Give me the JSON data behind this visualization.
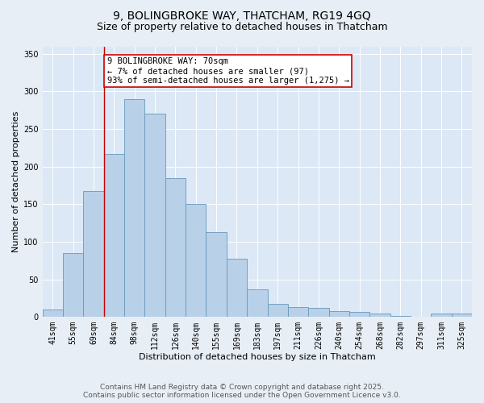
{
  "title_line1": "9, BOLINGBROKE WAY, THATCHAM, RG19 4GQ",
  "title_line2": "Size of property relative to detached houses in Thatcham",
  "xlabel": "Distribution of detached houses by size in Thatcham",
  "ylabel": "Number of detached properties",
  "categories": [
    "41sqm",
    "55sqm",
    "69sqm",
    "84sqm",
    "98sqm",
    "112sqm",
    "126sqm",
    "140sqm",
    "155sqm",
    "169sqm",
    "183sqm",
    "197sqm",
    "211sqm",
    "226sqm",
    "240sqm",
    "254sqm",
    "268sqm",
    "282sqm",
    "297sqm",
    "311sqm",
    "325sqm"
  ],
  "values": [
    10,
    85,
    168,
    217,
    290,
    270,
    185,
    150,
    113,
    77,
    37,
    17,
    13,
    12,
    8,
    7,
    5,
    1,
    0,
    4,
    4
  ],
  "bar_color": "#b8d0e8",
  "bar_edge_color": "#6699bb",
  "bar_width": 1.0,
  "vline_x": 2.5,
  "vline_color": "#cc0000",
  "annotation_text": "9 BOLINGBROKE WAY: 70sqm\n← 7% of detached houses are smaller (97)\n93% of semi-detached houses are larger (1,275) →",
  "annotation_box_color": "#ffffff",
  "annotation_box_edgecolor": "#cc0000",
  "ylim": [
    0,
    360
  ],
  "yticks": [
    0,
    50,
    100,
    150,
    200,
    250,
    300,
    350
  ],
  "bg_color": "#dce8f5",
  "fig_bg_color": "#e8eef5",
  "footer_line1": "Contains HM Land Registry data © Crown copyright and database right 2025.",
  "footer_line2": "Contains public sector information licensed under the Open Government Licence v3.0.",
  "title_fontsize": 10,
  "subtitle_fontsize": 9,
  "axis_label_fontsize": 8,
  "tick_fontsize": 7,
  "annotation_fontsize": 7.5,
  "footer_fontsize": 6.5
}
